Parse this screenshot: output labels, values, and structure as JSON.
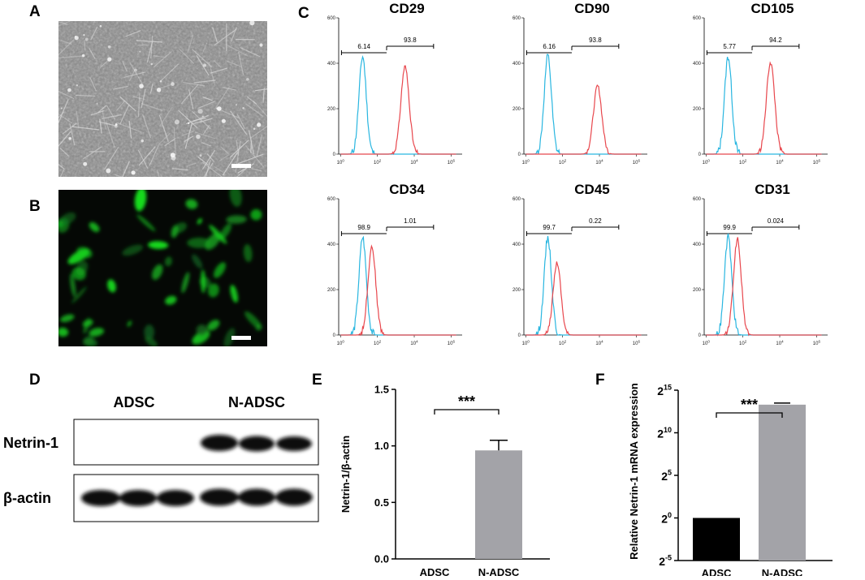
{
  "panels": {
    "a": "A",
    "b": "B",
    "c": "C",
    "d": "D",
    "e": "E",
    "f": "F"
  },
  "flow": {
    "x_ticks": [
      {
        "base": "10",
        "exp": "0"
      },
      {
        "base": "10",
        "exp": "2"
      },
      {
        "base": "10",
        "exp": "4"
      },
      {
        "base": "10",
        "exp": "6"
      }
    ],
    "y_ticks": [
      "0",
      "200",
      "400",
      "600"
    ],
    "markers": [
      {
        "name": "CD29",
        "neg": "6.14",
        "pos": "93.8",
        "overlap": false,
        "red_peak_x": 3.5,
        "red_peak_count": 385
      },
      {
        "name": "CD90",
        "neg": "6.16",
        "pos": "93.8",
        "overlap": false,
        "red_peak_x": 3.9,
        "red_peak_count": 300
      },
      {
        "name": "CD105",
        "neg": "5.77",
        "pos": "94.2",
        "overlap": false,
        "red_peak_x": 3.5,
        "red_peak_count": 405
      },
      {
        "name": "CD34",
        "neg": "98.9",
        "pos": "1.01",
        "overlap": true,
        "red_peak_x": 1.7,
        "red_peak_count": 390
      },
      {
        "name": "CD45",
        "neg": "99.7",
        "pos": "0.22",
        "overlap": true,
        "red_peak_x": 1.7,
        "red_peak_count": 320
      },
      {
        "name": "CD31",
        "neg": "99.9",
        "pos": "0.024",
        "overlap": true,
        "red_peak_x": 1.7,
        "red_peak_count": 420
      }
    ],
    "colors": {
      "control": "#29b6e0",
      "sample": "#e8474d"
    }
  },
  "western": {
    "groups": [
      "ADSC",
      "N-ADSC"
    ],
    "proteins": [
      "Netrin-1",
      "β-actin"
    ]
  },
  "chart_data": [
    {
      "type": "bar",
      "panel": "E",
      "categories": [
        "ADSC",
        "N-ADSC"
      ],
      "values": [
        0.0,
        0.96
      ],
      "error": [
        0.0,
        0.09
      ],
      "ylabel": "Netrin-1/β-actin",
      "ylim": [
        0.0,
        1.5
      ],
      "yticks": [
        "0.0",
        "0.5",
        "1.0",
        "1.5"
      ],
      "significance": "***",
      "colors": [
        "#000000",
        "#a3a3a8"
      ]
    },
    {
      "type": "bar",
      "panel": "F",
      "categories": [
        "ADSC",
        "N-ADSC"
      ],
      "values": [
        1,
        10200.0
      ],
      "log2_values": [
        0,
        13.3
      ],
      "ylabel": "Relative Netrin-1 mRNA expression",
      "yscale": "log2",
      "ylim_log2": [
        -5,
        15
      ],
      "yticks": [
        {
          "base": "2",
          "exp": "-5"
        },
        {
          "base": "2",
          "exp": "0"
        },
        {
          "base": "2",
          "exp": "5"
        },
        {
          "base": "2",
          "exp": "10"
        },
        {
          "base": "2",
          "exp": "15"
        }
      ],
      "significance": "***",
      "colors": [
        "#000000",
        "#a3a3a8"
      ]
    }
  ]
}
